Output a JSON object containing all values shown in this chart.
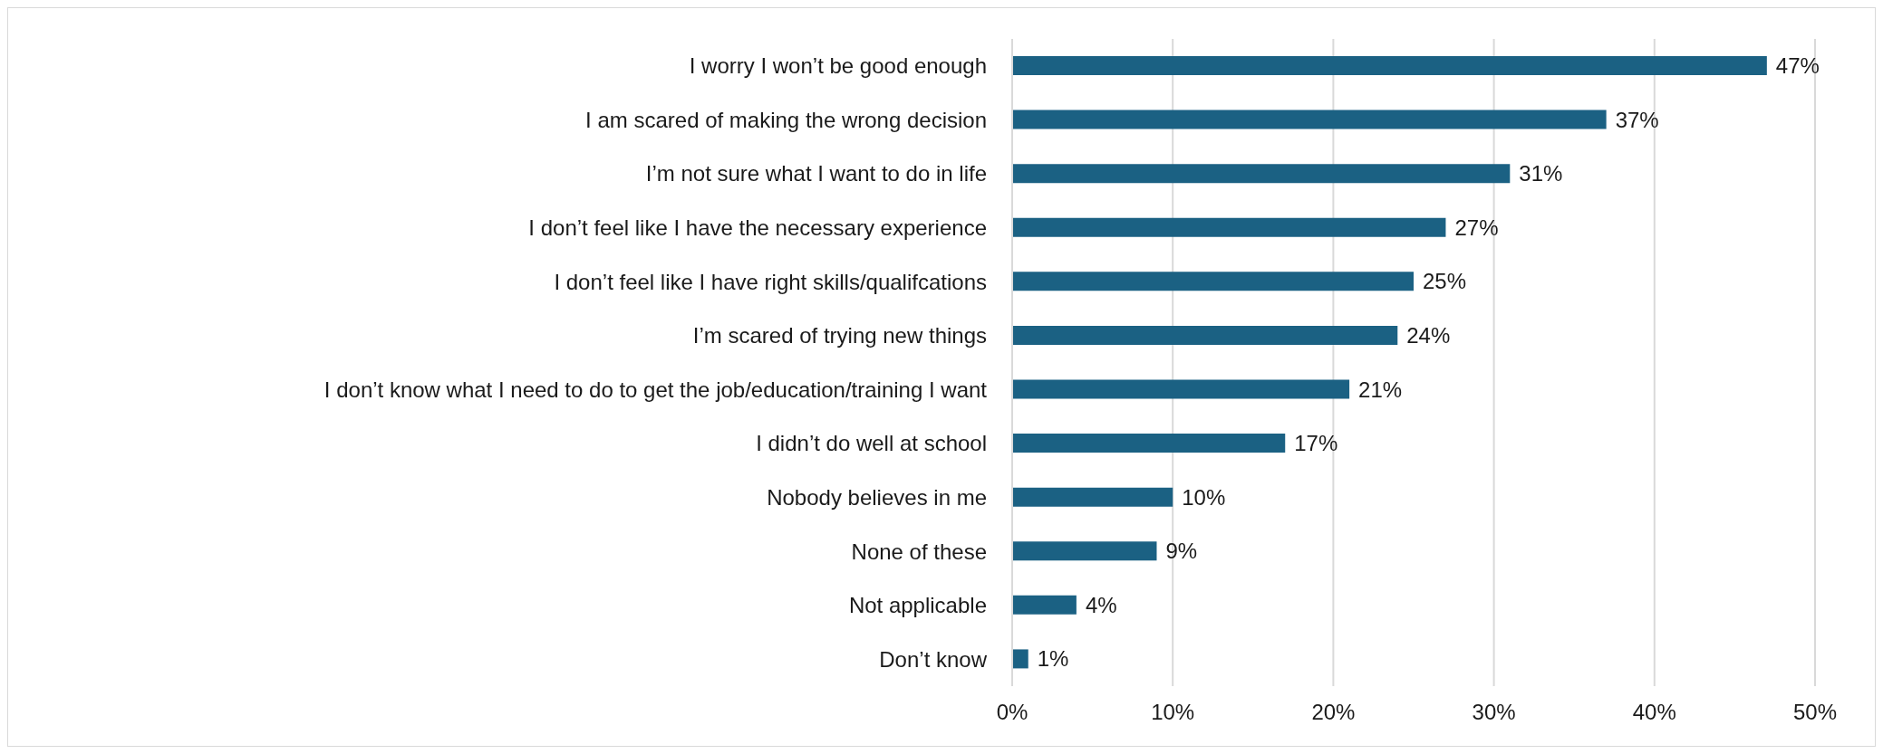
{
  "chart_data": {
    "type": "bar",
    "orientation": "horizontal",
    "categories": [
      "I worry I won’t be good enough",
      "I am scared of making the wrong decision",
      "I’m not sure what I want to do in life",
      "I don’t feel like I have the necessary experience",
      "I don’t feel like I have right skills/qualifcations",
      "I’m scared of trying new things",
      "I don’t know what I need to do to get the job/education/training  I want",
      "I didn’t do well at school",
      "Nobody believes in me",
      "None of these",
      "Not applicable ",
      "Don’t know"
    ],
    "values": [
      47,
      37,
      31,
      27,
      25,
      24,
      21,
      17,
      10,
      9,
      4,
      1
    ],
    "value_labels": [
      "47%",
      "37%",
      "31%",
      "27%",
      "25%",
      "24%",
      "21%",
      "17%",
      "10%",
      "9%",
      "4%",
      "1%"
    ],
    "color": "#1b6183",
    "xlim": [
      0,
      50
    ],
    "xticks": [
      {
        "value": 0,
        "label": "0%"
      },
      {
        "value": 10,
        "label": "10%"
      },
      {
        "value": 20,
        "label": "20%"
      },
      {
        "value": 30,
        "label": "30%"
      },
      {
        "value": 40,
        "label": "40%"
      },
      {
        "value": 50,
        "label": "50%"
      }
    ],
    "grid": "x",
    "legend": false
  }
}
